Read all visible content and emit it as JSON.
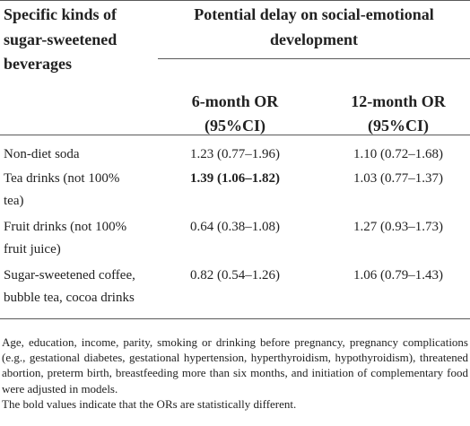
{
  "table": {
    "header": {
      "first_col": [
        "Specific kinds of",
        "sugar-sweetened",
        "beverages"
      ],
      "group_title": [
        "Potential delay on social-emotional",
        "development"
      ],
      "col_6m": [
        "6-month OR",
        "(95%CI)"
      ],
      "col_12m": [
        "12-month OR",
        "(95%CI)"
      ]
    },
    "rows": [
      {
        "label": [
          "Non-diet soda"
        ],
        "or_6m": "1.23 (0.77–1.96)",
        "or_12m": "1.10 (0.72–1.68)",
        "bold_6m": false
      },
      {
        "label": [
          "Tea drinks (not 100%",
          "tea)"
        ],
        "or_6m": "1.39 (1.06–1.82)",
        "or_12m": "1.03 (0.77–1.37)",
        "bold_6m": true
      },
      {
        "label": [
          "Fruit drinks (not 100%",
          "fruit juice)"
        ],
        "or_6m": "0.64 (0.38–1.08)",
        "or_12m": "1.27 (0.93–1.73)",
        "bold_6m": false
      },
      {
        "label": [
          "Sugar-sweetened coffee,",
          "bubble tea, cocoa drinks"
        ],
        "or_6m": "0.82 (0.54–1.26)",
        "or_12m": "1.06 (0.79–1.43)",
        "bold_6m": false
      }
    ]
  },
  "footnotes": [
    "Age, education, income, parity, smoking or drinking before pregnancy, pregnancy complications (e.g., gestational diabetes, gestational hypertension, hyperthyroidism, hypothyroidism), threatened abortion, preterm birth, breastfeeding more than six months, and initiation of complementary food were adjusted in models.",
    "The bold values indicate that the ORs are statistically different."
  ]
}
